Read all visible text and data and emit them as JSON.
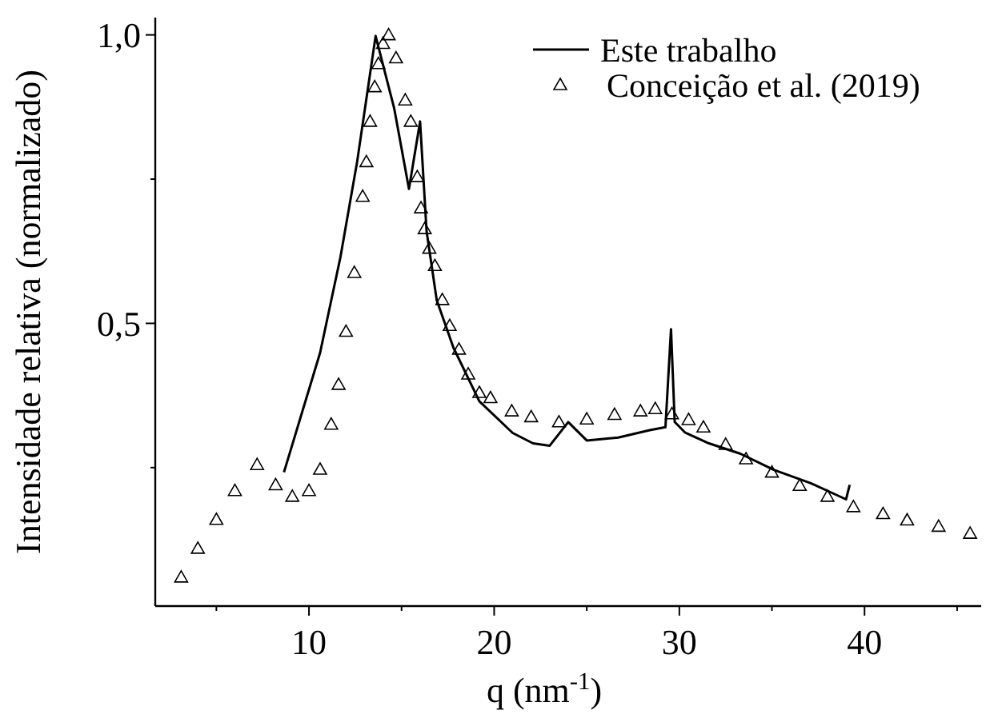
{
  "chart_data": {
    "type": "line",
    "xlabel": "q (nm$^{-1}$)",
    "ylabel": "Intensidade relativa (normalizado)",
    "xlim": [
      1.7,
      46.3
    ],
    "ylim": [
      0.01,
      1.03
    ],
    "xticks": [
      {
        "value": 5,
        "label": null
      },
      10,
      {
        "value": 15,
        "label": null
      },
      20,
      {
        "value": 25,
        "label": null
      },
      30,
      {
        "value": 35,
        "label": null
      },
      40,
      {
        "value": 45,
        "label": null
      }
    ],
    "yticks": [
      {
        "value": 0.25,
        "label": null
      },
      {
        "value": 0.5,
        "label": "0,5"
      },
      {
        "value": 0.75,
        "label": null
      },
      {
        "value": 1.0,
        "label": "1,0"
      }
    ],
    "legend": "top right",
    "grid": false,
    "series": [
      {
        "name": "Este trabalho",
        "color": "#000000",
        "line_style": "solid",
        "marker": "none",
        "x": [
          8.65,
          10.6,
          11.7,
          12.6,
          13.6,
          14.6,
          15.4,
          16.0,
          16.35,
          16.9,
          17.8,
          19.2,
          21.0,
          22.1,
          23.0,
          24.0,
          25.0,
          26.7,
          28.4,
          29.25,
          29.55,
          29.75,
          30.3,
          31.6,
          33.3,
          35.1,
          37.1,
          39.0,
          39.2
        ],
        "values": [
          0.242,
          0.449,
          0.615,
          0.78,
          0.998,
          0.873,
          0.733,
          0.85,
          0.66,
          0.54,
          0.458,
          0.365,
          0.31,
          0.292,
          0.288,
          0.329,
          0.297,
          0.302,
          0.315,
          0.32,
          0.49,
          0.329,
          0.311,
          0.292,
          0.274,
          0.246,
          0.223,
          0.195,
          0.22
        ]
      },
      {
        "name": "Conceição et al. (2019)",
        "type": "scatter",
        "color": "#000000",
        "marker": "triangle",
        "x": [
          3.1,
          4.0,
          5.0,
          6.0,
          7.2,
          8.2,
          9.1,
          10.0,
          10.6,
          11.2,
          11.6,
          12.0,
          12.45,
          12.9,
          13.1,
          13.3,
          13.55,
          13.75,
          14.0,
          14.3,
          14.7,
          15.2,
          15.5,
          15.85,
          16.05,
          16.25,
          16.5,
          16.8,
          17.2,
          17.6,
          18.1,
          18.6,
          19.2,
          19.8,
          20.95,
          22.0,
          23.5,
          25.0,
          26.5,
          27.9,
          28.7,
          29.6,
          30.5,
          31.3,
          32.5,
          33.6,
          35.0,
          36.5,
          38.0,
          39.4,
          41.0,
          42.3,
          44.0,
          45.7
        ],
        "values": [
          0.06,
          0.11,
          0.16,
          0.21,
          0.255,
          0.22,
          0.2,
          0.21,
          0.247,
          0.325,
          0.394,
          0.486,
          0.588,
          0.72,
          0.78,
          0.85,
          0.91,
          0.95,
          0.985,
          1.0,
          0.96,
          0.887,
          0.85,
          0.754,
          0.7,
          0.664,
          0.63,
          0.6,
          0.541,
          0.496,
          0.455,
          0.412,
          0.38,
          0.371,
          0.348,
          0.338,
          0.329,
          0.334,
          0.342,
          0.348,
          0.352,
          0.343,
          0.333,
          0.32,
          0.29,
          0.265,
          0.242,
          0.219,
          0.2,
          0.182,
          0.17,
          0.159,
          0.148,
          0.136
        ]
      }
    ]
  }
}
